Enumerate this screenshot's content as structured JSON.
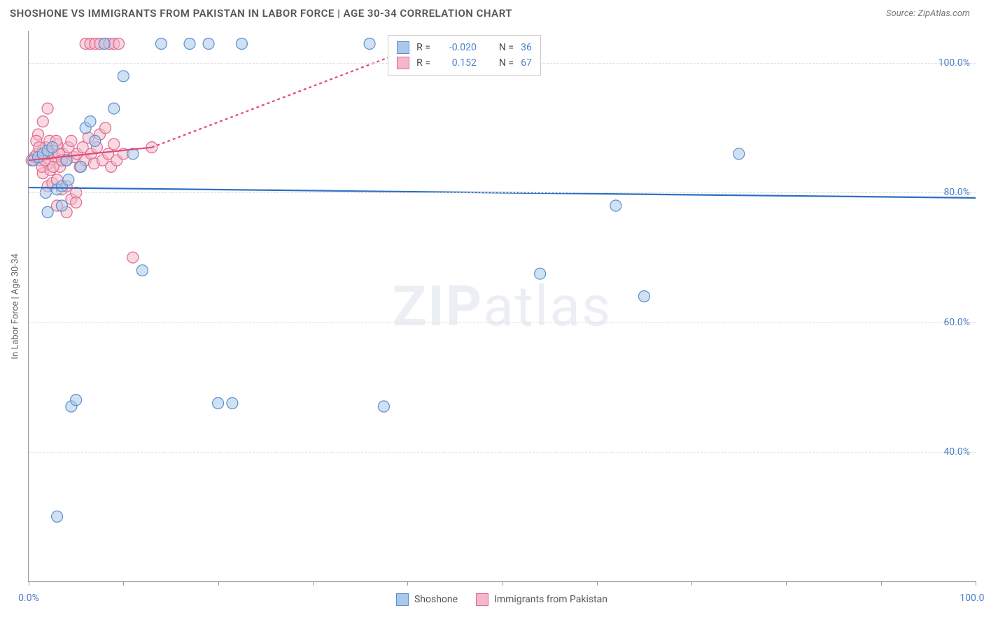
{
  "title": "SHOSHONE VS IMMIGRANTS FROM PAKISTAN IN LABOR FORCE | AGE 30-34 CORRELATION CHART",
  "source": "Source: ZipAtlas.com",
  "ylabel": "In Labor Force | Age 30-34",
  "watermark": {
    "bold": "ZIP",
    "rest": "atlas"
  },
  "chart": {
    "type": "scatter",
    "background_color": "#ffffff",
    "grid_color": "#dddddd",
    "axis_color": "#999999",
    "tick_label_color": "#4a7fc9",
    "xlim": [
      0,
      100
    ],
    "ylim": [
      20,
      105
    ],
    "x_ticks": [
      0,
      10,
      20,
      30,
      40,
      50,
      60,
      70,
      80,
      90,
      100
    ],
    "x_tick_labels": {
      "0": "0.0%",
      "100": "100.0%"
    },
    "y_gridlines": [
      40,
      60,
      80,
      100
    ],
    "y_tick_labels": {
      "40": "40.0%",
      "60": "60.0%",
      "80": "80.0%",
      "100": "100.0%"
    },
    "marker_radius": 8,
    "marker_opacity": 0.55,
    "marker_stroke_width": 1.2,
    "trendline_width": 2.2,
    "trendline_dash_extension": "4 4"
  },
  "series": {
    "shoshone": {
      "label": "Shoshone",
      "fill": "#a9c8ea",
      "stroke": "#5b8fd0",
      "R": "-0.020",
      "N": "36",
      "trend": {
        "x1": 0,
        "y1": 80.8,
        "x2": 100,
        "y2": 79.2,
        "color": "#2e6fc4"
      },
      "points": [
        [
          0.5,
          85
        ],
        [
          1.0,
          85.5
        ],
        [
          1.5,
          86
        ],
        [
          2.0,
          86.5
        ],
        [
          2.5,
          87
        ],
        [
          3.0,
          80.5
        ],
        [
          3.5,
          81
        ],
        [
          4.0,
          85
        ],
        [
          4.5,
          47
        ],
        [
          5.0,
          48
        ],
        [
          6.0,
          90
        ],
        [
          7.0,
          88
        ],
        [
          8.0,
          103
        ],
        [
          9.0,
          93
        ],
        [
          10.0,
          98
        ],
        [
          11.0,
          86
        ],
        [
          12.0,
          68
        ],
        [
          14.0,
          103
        ],
        [
          17.0,
          103
        ],
        [
          19.0,
          103
        ],
        [
          20.0,
          47.5
        ],
        [
          21.5,
          47.5
        ],
        [
          22.5,
          103
        ],
        [
          36.0,
          103
        ],
        [
          37.5,
          47
        ],
        [
          54.0,
          67.5
        ],
        [
          62.0,
          78
        ],
        [
          65.0,
          64
        ],
        [
          75.0,
          86
        ],
        [
          3.0,
          30
        ],
        [
          2.0,
          77
        ],
        [
          3.5,
          78
        ],
        [
          4.2,
          82
        ],
        [
          5.5,
          84
        ],
        [
          6.5,
          91
        ],
        [
          1.8,
          80
        ]
      ]
    },
    "pakistan": {
      "label": "Immigrants from Pakistan",
      "fill": "#f3b8c9",
      "stroke": "#e06a8e",
      "R": "0.152",
      "N": "67",
      "trend": {
        "x1": 0,
        "y1": 85,
        "x2": 13,
        "y2": 87,
        "ext_x2": 40,
        "ext_y2": 102,
        "color": "#e04a78"
      },
      "points": [
        [
          0.3,
          85
        ],
        [
          0.6,
          85.5
        ],
        [
          0.9,
          86
        ],
        [
          1.2,
          85
        ],
        [
          1.5,
          86.5
        ],
        [
          1.8,
          87
        ],
        [
          2.1,
          84.5
        ],
        [
          2.4,
          86
        ],
        [
          2.7,
          85.5
        ],
        [
          3.0,
          87.5
        ],
        [
          3.3,
          84
        ],
        [
          3.6,
          86
        ],
        [
          3.9,
          85
        ],
        [
          4.2,
          87
        ],
        [
          4.5,
          88
        ],
        [
          4.8,
          85.5
        ],
        [
          5.1,
          86
        ],
        [
          5.4,
          84
        ],
        [
          5.7,
          87
        ],
        [
          6.0,
          85
        ],
        [
          6.3,
          88.5
        ],
        [
          6.6,
          86
        ],
        [
          6.9,
          84.5
        ],
        [
          7.2,
          87
        ],
        [
          7.5,
          89
        ],
        [
          7.8,
          85
        ],
        [
          8.1,
          90
        ],
        [
          8.4,
          86
        ],
        [
          8.7,
          84
        ],
        [
          9.0,
          87.5
        ],
        [
          9.3,
          85
        ],
        [
          2.0,
          81
        ],
        [
          2.5,
          81.5
        ],
        [
          3.0,
          82
        ],
        [
          3.5,
          80.5
        ],
        [
          4.0,
          81
        ],
        [
          4.5,
          79
        ],
        [
          5.0,
          80
        ],
        [
          1.0,
          89
        ],
        [
          1.5,
          91
        ],
        [
          2.0,
          93
        ],
        [
          6.0,
          103
        ],
        [
          6.5,
          103
        ],
        [
          7.0,
          103
        ],
        [
          7.5,
          103
        ],
        [
          8.0,
          103
        ],
        [
          8.5,
          103
        ],
        [
          9.0,
          103
        ],
        [
          9.5,
          103
        ],
        [
          3.0,
          78
        ],
        [
          4.0,
          77
        ],
        [
          5.0,
          78.5
        ],
        [
          1.5,
          83
        ],
        [
          2.2,
          88
        ],
        [
          11.0,
          70
        ],
        [
          13.0,
          87
        ],
        [
          10.0,
          86
        ],
        [
          0.8,
          88
        ],
        [
          1.1,
          87
        ],
        [
          1.4,
          84
        ],
        [
          1.7,
          85
        ],
        [
          2.0,
          86
        ],
        [
          2.3,
          83.5
        ],
        [
          2.6,
          84
        ],
        [
          2.9,
          88
        ],
        [
          3.2,
          86
        ],
        [
          3.5,
          85
        ]
      ]
    }
  },
  "stats_box": {
    "rows": [
      {
        "swatch_fill": "#a9c8ea",
        "swatch_stroke": "#5b8fd0",
        "R": "-0.020",
        "N": "36"
      },
      {
        "swatch_fill": "#f3b8c9",
        "swatch_stroke": "#e06a8e",
        "R": "0.152",
        "N": "67"
      }
    ],
    "labels": {
      "R": "R =",
      "N": "N ="
    }
  }
}
